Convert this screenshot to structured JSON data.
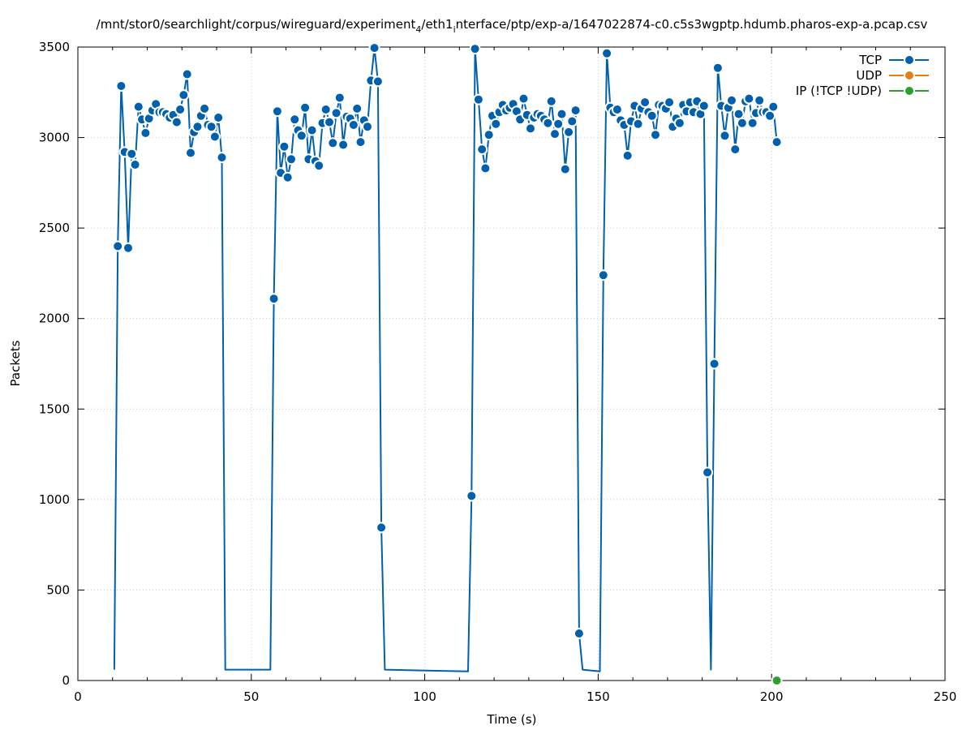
{
  "chart_data": {
    "type": "line",
    "title": "/mnt/stor0/searchlight/corpus/wireguard/experiment",
    "title_sub1": "4",
    "title_mid": "/eth1",
    "title_sub2": "i",
    "title_end": "nterface/ptp/exp-a/1647022874-c0.c5s3wgptp.hdumb.pharos-exp-a.pcap.csv",
    "xlabel": "Time (s)",
    "ylabel": "Packets",
    "xlim": [
      0,
      250
    ],
    "ylim": [
      0,
      3500
    ],
    "xticks": [
      "0",
      "50",
      "100",
      "150",
      "200",
      "250"
    ],
    "yticks": [
      "0",
      "500",
      "1000",
      "1500",
      "2000",
      "2500",
      "3000",
      "3500"
    ],
    "grid": true,
    "legend_position": "top-right",
    "series": [
      {
        "name": "TCP",
        "color": "#0060ad",
        "marker": "circle",
        "points": [
          [
            10.5,
            60
          ],
          [
            11.5,
            2400
          ],
          [
            12.5,
            3285
          ],
          [
            13.5,
            2920
          ],
          [
            14.5,
            2390
          ],
          [
            15.5,
            2910
          ],
          [
            16.5,
            2850
          ],
          [
            17.5,
            3170
          ],
          [
            18.5,
            3100
          ],
          [
            19.5,
            3025
          ],
          [
            20.5,
            3105
          ],
          [
            21.5,
            3150
          ],
          [
            22.5,
            3185
          ],
          [
            23.5,
            3140
          ],
          [
            24.5,
            3140
          ],
          [
            25.5,
            3130
          ],
          [
            26.5,
            3110
          ],
          [
            27.5,
            3125
          ],
          [
            28.5,
            3085
          ],
          [
            29.5,
            3155
          ],
          [
            30.5,
            3235
          ],
          [
            31.5,
            3350
          ],
          [
            32.5,
            2915
          ],
          [
            33.5,
            3030
          ],
          [
            34.5,
            3060
          ],
          [
            35.5,
            3120
          ],
          [
            36.5,
            3160
          ],
          [
            37.5,
            3070
          ],
          [
            38.5,
            3060
          ],
          [
            39.5,
            3005
          ],
          [
            40.5,
            3110
          ],
          [
            41.5,
            2890
          ],
          [
            42.5,
            60
          ],
          [
            55.5,
            60
          ],
          [
            56.5,
            2110
          ],
          [
            57.5,
            3145
          ],
          [
            58.5,
            2805
          ],
          [
            59.5,
            2950
          ],
          [
            60.5,
            2780
          ],
          [
            61.5,
            2880
          ],
          [
            62.5,
            3100
          ],
          [
            63.5,
            3040
          ],
          [
            64.5,
            3010
          ],
          [
            65.5,
            3165
          ],
          [
            66.5,
            2880
          ],
          [
            67.5,
            3040
          ],
          [
            68.5,
            2870
          ],
          [
            69.5,
            2845
          ],
          [
            70.5,
            3080
          ],
          [
            71.5,
            3155
          ],
          [
            72.5,
            3085
          ],
          [
            73.5,
            2970
          ],
          [
            74.5,
            3135
          ],
          [
            75.5,
            3220
          ],
          [
            76.5,
            2960
          ],
          [
            77.5,
            3115
          ],
          [
            78.5,
            3105
          ],
          [
            79.5,
            3070
          ],
          [
            80.5,
            3160
          ],
          [
            81.5,
            2975
          ],
          [
            82.5,
            3095
          ],
          [
            83.5,
            3060
          ],
          [
            84.5,
            3315
          ],
          [
            85.5,
            3495
          ],
          [
            86.5,
            3310
          ],
          [
            87.5,
            845
          ],
          [
            88.5,
            60
          ],
          [
            112.5,
            50
          ],
          [
            113.5,
            1020
          ],
          [
            114.5,
            3490
          ],
          [
            115.5,
            3210
          ],
          [
            116.5,
            2935
          ],
          [
            117.5,
            2830
          ],
          [
            118.5,
            3015
          ],
          [
            119.5,
            3120
          ],
          [
            120.5,
            3075
          ],
          [
            121.5,
            3140
          ],
          [
            122.5,
            3180
          ],
          [
            123.5,
            3150
          ],
          [
            124.5,
            3165
          ],
          [
            125.5,
            3185
          ],
          [
            126.5,
            3145
          ],
          [
            127.5,
            3100
          ],
          [
            128.5,
            3215
          ],
          [
            129.5,
            3125
          ],
          [
            130.5,
            3050
          ],
          [
            131.5,
            3110
          ],
          [
            132.5,
            3130
          ],
          [
            133.5,
            3120
          ],
          [
            134.5,
            3100
          ],
          [
            135.5,
            3080
          ],
          [
            136.5,
            3200
          ],
          [
            137.5,
            3020
          ],
          [
            138.5,
            3075
          ],
          [
            139.5,
            3130
          ],
          [
            140.5,
            2825
          ],
          [
            141.5,
            3030
          ],
          [
            142.5,
            3090
          ],
          [
            143.5,
            3150
          ],
          [
            144.5,
            260
          ],
          [
            145.5,
            60
          ],
          [
            150.5,
            50
          ],
          [
            151.5,
            2240
          ],
          [
            152.5,
            3465
          ],
          [
            153.5,
            3165
          ],
          [
            154.5,
            3140
          ],
          [
            155.5,
            3155
          ],
          [
            156.5,
            3095
          ],
          [
            157.5,
            3070
          ],
          [
            158.5,
            2900
          ],
          [
            159.5,
            3090
          ],
          [
            160.5,
            3175
          ],
          [
            161.5,
            3075
          ],
          [
            162.5,
            3160
          ],
          [
            163.5,
            3195
          ],
          [
            164.5,
            3140
          ],
          [
            165.5,
            3120
          ],
          [
            166.5,
            3015
          ],
          [
            167.5,
            3180
          ],
          [
            168.5,
            3175
          ],
          [
            169.5,
            3160
          ],
          [
            170.5,
            3195
          ],
          [
            171.5,
            3060
          ],
          [
            172.5,
            3105
          ],
          [
            173.5,
            3080
          ],
          [
            174.5,
            3180
          ],
          [
            175.5,
            3145
          ],
          [
            176.5,
            3195
          ],
          [
            177.5,
            3140
          ],
          [
            178.5,
            3200
          ],
          [
            179.5,
            3130
          ],
          [
            180.5,
            3175
          ],
          [
            181.5,
            1150
          ],
          [
            182.5,
            60
          ],
          [
            183.5,
            1750
          ],
          [
            184.5,
            3385
          ],
          [
            185.5,
            3175
          ],
          [
            186.5,
            3010
          ],
          [
            187.5,
            3165
          ],
          [
            188.5,
            3205
          ],
          [
            189.5,
            2935
          ],
          [
            190.5,
            3130
          ],
          [
            191.5,
            3080
          ],
          [
            192.5,
            3200
          ],
          [
            193.5,
            3215
          ],
          [
            194.5,
            3080
          ],
          [
            195.5,
            3135
          ],
          [
            196.5,
            3205
          ],
          [
            197.5,
            3140
          ],
          [
            198.5,
            3140
          ],
          [
            199.5,
            3120
          ],
          [
            200.5,
            3170
          ],
          [
            201.5,
            2975
          ]
        ],
        "markers_hidden_at": [
          10.5,
          42.5,
          55.5,
          88.5,
          112.5,
          145.5,
          150.5,
          182.5
        ]
      },
      {
        "name": "UDP",
        "color": "#e87d16",
        "marker": "circle",
        "points": []
      },
      {
        "name": "IP (!TCP  !UDP)",
        "color": "#2ca02c",
        "marker": "circle",
        "points": [
          [
            201.5,
            0
          ]
        ]
      }
    ]
  }
}
